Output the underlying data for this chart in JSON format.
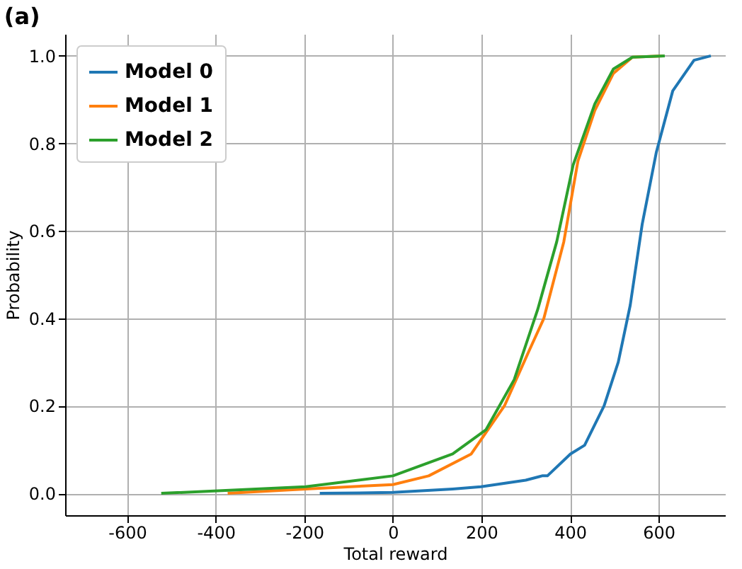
{
  "chart_data": {
    "type": "line",
    "title": "(a)",
    "xlabel": "Total reward",
    "ylabel": "Probability",
    "xlim": [
      -740,
      750
    ],
    "ylim": [
      -0.05,
      1.05
    ],
    "xticks": [
      -600,
      -400,
      -200,
      0,
      200,
      400,
      600
    ],
    "yticks": [
      {
        "value": 0,
        "label": "0.0"
      },
      {
        "value": 0.2,
        "label": "0.2"
      },
      {
        "value": 0.4,
        "label": "0.4"
      },
      {
        "value": 0.6,
        "label": "0.6"
      },
      {
        "value": 0.8,
        "label": "0.8"
      },
      {
        "value": 1,
        "label": "1.0"
      }
    ],
    "grid": true,
    "legend": "top left",
    "line_style": "solid",
    "marker": "none",
    "series": [
      {
        "name": "Model 0",
        "color": "#1f77b4",
        "x": [
          -165,
          0,
          135,
          199,
          300,
          337,
          349,
          401,
          433,
          477,
          509,
          536,
          563,
          595,
          632,
          680,
          718
        ],
        "values": [
          0,
          0.002,
          0.01,
          0.015,
          0.03,
          0.04,
          0.04,
          0.09,
          0.11,
          0.2,
          0.3,
          0.43,
          0.615,
          0.78,
          0.92,
          0.99,
          1.0
        ]
      },
      {
        "name": "Model 1",
        "color": "#ff7f0e",
        "x": [
          -373,
          -197,
          0,
          81,
          177,
          252,
          305,
          341,
          386,
          418,
          456,
          498,
          541,
          611
        ],
        "values": [
          0,
          0.01,
          0.02,
          0.04,
          0.09,
          0.2,
          0.32,
          0.4,
          0.575,
          0.76,
          0.875,
          0.96,
          0.997,
          1.0
        ]
      },
      {
        "name": "Model 2",
        "color": "#2ca02c",
        "x": [
          -523,
          -197,
          0,
          135,
          210,
          274,
          327,
          370,
          407,
          456,
          498,
          541,
          614
        ],
        "values": [
          0,
          0.015,
          0.04,
          0.09,
          0.145,
          0.26,
          0.42,
          0.575,
          0.75,
          0.89,
          0.97,
          0.997,
          1.0
        ]
      }
    ]
  }
}
